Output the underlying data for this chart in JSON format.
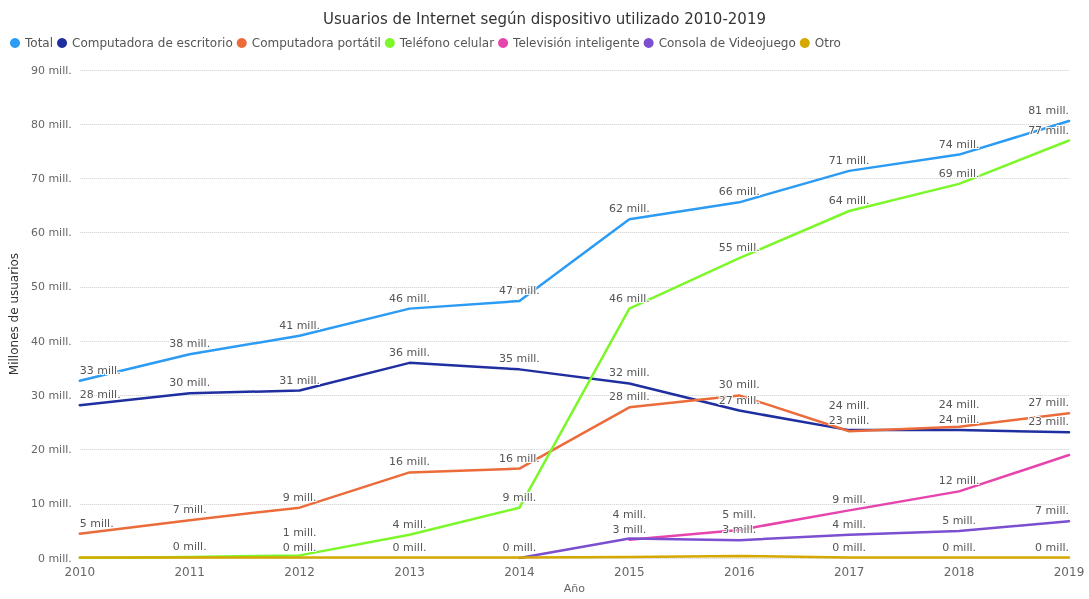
{
  "chart_data": {
    "type": "line",
    "title": "Usuarios de Internet según dispositivo utilizado 2010-2019",
    "xlabel": "Año",
    "ylabel": "Millones de usuarios",
    "categories": [
      "2010",
      "2011",
      "2012",
      "2013",
      "2014",
      "2015",
      "2016",
      "2017",
      "2018",
      "2019"
    ],
    "series": [
      {
        "name": "Total",
        "color": "#2b9bf4",
        "values": [
          32.7,
          37.6,
          41,
          46,
          47.4,
          62.5,
          65.6,
          71.4,
          74.4,
          80.6
        ],
        "value_labels": [
          "33 mill.",
          "38 mill.",
          "41 mill.",
          "46 mill.",
          "47 mill.",
          "62 mill.",
          "66 mill.",
          "71 mill.",
          "74 mill.",
          "81 mill."
        ]
      },
      {
        "name": "Computadora de escritorio",
        "color": "#1f2fa0",
        "values": [
          28.2,
          30.4,
          30.9,
          36,
          34.8,
          32.2,
          27.2,
          23.6,
          23.6,
          23.2
        ],
        "value_labels": [
          "28 mill.",
          "30 mill.",
          "31 mill.",
          "36 mill.",
          "35 mill.",
          "32 mill.",
          "27 mill.",
          "24 mill.",
          "24 mill.",
          "23 mill."
        ]
      },
      {
        "name": "Computadora portátil",
        "color": "#ec6b3a",
        "values": [
          4.5,
          7,
          9.3,
          15.8,
          16.5,
          27.8,
          30,
          23.4,
          24.2,
          26.7
        ],
        "value_labels": [
          "5 mill.",
          "7 mill.",
          "9 mill.",
          "16 mill.",
          "16 mill.",
          "28 mill.",
          "30 mill.",
          "23 mill.",
          "24 mill.",
          "27 mill."
        ]
      },
      {
        "name": "Teléfono celular",
        "color": "#7cf72a",
        "values": [
          0,
          0.2,
          0.5,
          4.3,
          9.3,
          46,
          55.3,
          64,
          69,
          77
        ],
        "value_labels": [
          null,
          "0 mill.",
          "1 mill.",
          "4 mill.",
          "9 mill.",
          "46 mill.",
          "55 mill.",
          "64 mill.",
          "69 mill.",
          "77 mill."
        ]
      },
      {
        "name": "Televisión inteligente",
        "color": "#e645ae",
        "values": [
          null,
          null,
          null,
          null,
          null,
          3.4,
          5.2,
          8.8,
          12.3,
          19
        ],
        "value_labels": [
          null,
          null,
          null,
          null,
          null,
          "3 mill.",
          "5 mill.",
          "9 mill.",
          "12 mill.",
          null
        ]
      },
      {
        "name": "Consola de Videojuego",
        "color": "#7b4fcf",
        "values": [
          null,
          null,
          null,
          null,
          0,
          3.6,
          3.3,
          4.3,
          5,
          6.8
        ],
        "value_labels": [
          null,
          null,
          null,
          null,
          "0 mill.",
          "4 mill.",
          "3 mill.",
          "4 mill.",
          "5 mill.",
          "7 mill."
        ]
      },
      {
        "name": "Otro",
        "color": "#d4a800",
        "values": [
          0.1,
          0.1,
          0.1,
          0.1,
          0.1,
          0.2,
          0.4,
          0.1,
          0.1,
          0.1
        ],
        "value_labels": [
          null,
          null,
          "0 mill.",
          "0 mill.",
          null,
          null,
          null,
          "0 mill.",
          "0 mill.",
          "0 mill."
        ]
      }
    ],
    "ylim": [
      0,
      90
    ],
    "yticks": [
      {
        "value": 0,
        "label": "0 mill."
      },
      {
        "value": 10,
        "label": "10 mill."
      },
      {
        "value": 20,
        "label": "20 mill."
      },
      {
        "value": 30,
        "label": "30 mill."
      },
      {
        "value": 40,
        "label": "40 mill."
      },
      {
        "value": 50,
        "label": "50 mill."
      },
      {
        "value": 60,
        "label": "60 mill."
      },
      {
        "value": 70,
        "label": "70 mill."
      },
      {
        "value": 80,
        "label": "80 mill."
      },
      {
        "value": 90,
        "label": "90 mill."
      }
    ],
    "grid": "y",
    "legend": "top left",
    "marker": "none",
    "line_style": "solid"
  }
}
